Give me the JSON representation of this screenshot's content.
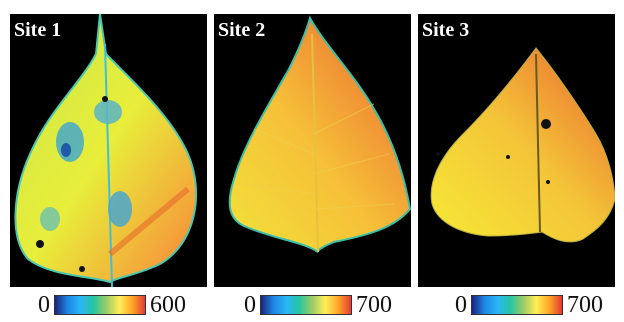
{
  "panels": [
    {
      "label": "Site 1",
      "scale_min": "0",
      "scale_max": "600"
    },
    {
      "label": "Site 2",
      "scale_min": "0",
      "scale_max": "700"
    },
    {
      "label": "Site 3",
      "scale_min": "0",
      "scale_max": "700"
    }
  ],
  "colormap": [
    "#1a237e",
    "#1e88e5",
    "#29b6f6",
    "#26c6a0",
    "#9ccc65",
    "#ffee58",
    "#ffa726",
    "#e53935"
  ]
}
